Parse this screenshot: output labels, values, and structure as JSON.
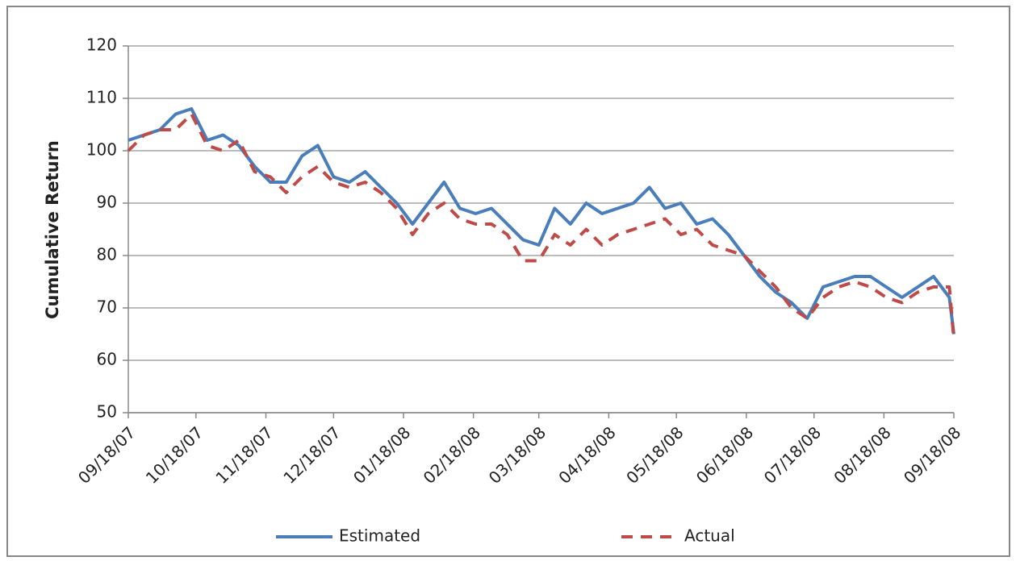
{
  "chart_data": {
    "type": "line",
    "y_label": "Cumulative Return",
    "x": [
      "09/18/07",
      "09/25/07",
      "10/02/07",
      "10/09/07",
      "10/16/07",
      "10/23/07",
      "10/30/07",
      "11/06/07",
      "11/13/07",
      "11/20/07",
      "11/27/07",
      "12/04/07",
      "12/11/07",
      "12/18/07",
      "12/25/07",
      "01/01/08",
      "01/08/08",
      "01/15/08",
      "01/22/08",
      "01/29/08",
      "02/05/08",
      "02/12/08",
      "02/19/08",
      "02/26/08",
      "03/04/08",
      "03/11/08",
      "03/18/08",
      "03/25/08",
      "04/01/08",
      "04/08/08",
      "04/15/08",
      "04/22/08",
      "04/29/08",
      "05/06/08",
      "05/13/08",
      "05/20/08",
      "05/27/08",
      "06/03/08",
      "06/10/08",
      "06/17/08",
      "06/24/08",
      "07/01/08",
      "07/08/08",
      "07/15/08",
      "07/22/08",
      "07/29/08",
      "08/05/08",
      "08/12/08",
      "08/19/08",
      "08/26/08",
      "09/02/08",
      "09/09/08",
      "09/16/08",
      "09/18/08"
    ],
    "series": [
      {
        "name": "Estimated",
        "color": "#4a7ebb",
        "dash": false,
        "values": [
          102,
          103,
          104,
          107,
          108,
          102,
          103,
          101,
          97,
          94,
          94,
          99,
          101,
          95,
          94,
          96,
          93,
          90,
          86,
          90,
          94,
          89,
          88,
          89,
          86,
          83,
          82,
          89,
          86,
          90,
          88,
          89,
          90,
          93,
          89,
          90,
          86,
          87,
          84,
          80,
          76,
          73,
          71,
          68,
          74,
          75,
          76,
          76,
          74,
          72,
          74,
          76,
          72,
          65
        ]
      },
      {
        "name": "Actual",
        "color": "#be4b48",
        "dash": true,
        "values": [
          100,
          103,
          104,
          104,
          107,
          101,
          100,
          102,
          96,
          95,
          92,
          95,
          97,
          94,
          93,
          94,
          92,
          89,
          84,
          88,
          90,
          87,
          86,
          86,
          84,
          79,
          79,
          84,
          82,
          85,
          82,
          84,
          85,
          86,
          87,
          84,
          85,
          82,
          81,
          80,
          77,
          74,
          70,
          68,
          72,
          74,
          75,
          74,
          72,
          71,
          73,
          74,
          74,
          64
        ]
      }
    ],
    "xlim": [
      "09/18/07",
      "09/18/08"
    ],
    "xticks": [
      "09/18/07",
      "10/18/07",
      "11/18/07",
      "12/18/07",
      "01/18/08",
      "02/18/08",
      "03/18/08",
      "04/18/08",
      "05/18/08",
      "06/18/08",
      "07/18/08",
      "08/18/08",
      "09/18/08"
    ],
    "ylim": [
      50,
      120
    ],
    "yticks": [
      50,
      60,
      70,
      80,
      90,
      100,
      110,
      120
    ],
    "grid": true,
    "legend": "bottom"
  }
}
